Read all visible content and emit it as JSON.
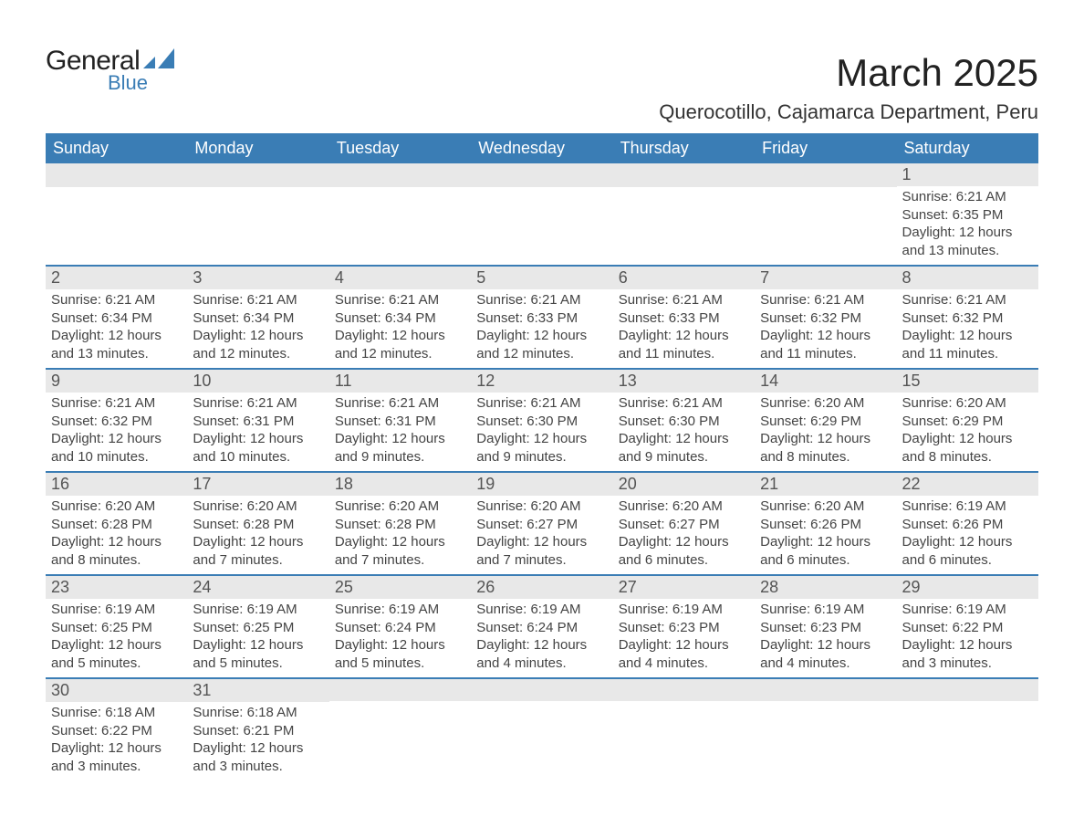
{
  "logo": {
    "general": "General",
    "blue": "Blue",
    "shape_color": "#3a7db5"
  },
  "title": "March 2025",
  "subtitle": "Querocotillo, Cajamarca Department, Peru",
  "colors": {
    "header_bg": "#3a7db5",
    "header_text": "#ffffff",
    "daynum_bg": "#e8e8e8",
    "row_border": "#3a7db5",
    "body_bg": "#ffffff",
    "text": "#444444"
  },
  "weekdays": [
    "Sunday",
    "Monday",
    "Tuesday",
    "Wednesday",
    "Thursday",
    "Friday",
    "Saturday"
  ],
  "weeks": [
    [
      null,
      null,
      null,
      null,
      null,
      null,
      {
        "n": "1",
        "sunrise": "Sunrise: 6:21 AM",
        "sunset": "Sunset: 6:35 PM",
        "daylight1": "Daylight: 12 hours",
        "daylight2": "and 13 minutes."
      }
    ],
    [
      {
        "n": "2",
        "sunrise": "Sunrise: 6:21 AM",
        "sunset": "Sunset: 6:34 PM",
        "daylight1": "Daylight: 12 hours",
        "daylight2": "and 13 minutes."
      },
      {
        "n": "3",
        "sunrise": "Sunrise: 6:21 AM",
        "sunset": "Sunset: 6:34 PM",
        "daylight1": "Daylight: 12 hours",
        "daylight2": "and 12 minutes."
      },
      {
        "n": "4",
        "sunrise": "Sunrise: 6:21 AM",
        "sunset": "Sunset: 6:34 PM",
        "daylight1": "Daylight: 12 hours",
        "daylight2": "and 12 minutes."
      },
      {
        "n": "5",
        "sunrise": "Sunrise: 6:21 AM",
        "sunset": "Sunset: 6:33 PM",
        "daylight1": "Daylight: 12 hours",
        "daylight2": "and 12 minutes."
      },
      {
        "n": "6",
        "sunrise": "Sunrise: 6:21 AM",
        "sunset": "Sunset: 6:33 PM",
        "daylight1": "Daylight: 12 hours",
        "daylight2": "and 11 minutes."
      },
      {
        "n": "7",
        "sunrise": "Sunrise: 6:21 AM",
        "sunset": "Sunset: 6:32 PM",
        "daylight1": "Daylight: 12 hours",
        "daylight2": "and 11 minutes."
      },
      {
        "n": "8",
        "sunrise": "Sunrise: 6:21 AM",
        "sunset": "Sunset: 6:32 PM",
        "daylight1": "Daylight: 12 hours",
        "daylight2": "and 11 minutes."
      }
    ],
    [
      {
        "n": "9",
        "sunrise": "Sunrise: 6:21 AM",
        "sunset": "Sunset: 6:32 PM",
        "daylight1": "Daylight: 12 hours",
        "daylight2": "and 10 minutes."
      },
      {
        "n": "10",
        "sunrise": "Sunrise: 6:21 AM",
        "sunset": "Sunset: 6:31 PM",
        "daylight1": "Daylight: 12 hours",
        "daylight2": "and 10 minutes."
      },
      {
        "n": "11",
        "sunrise": "Sunrise: 6:21 AM",
        "sunset": "Sunset: 6:31 PM",
        "daylight1": "Daylight: 12 hours",
        "daylight2": "and 9 minutes."
      },
      {
        "n": "12",
        "sunrise": "Sunrise: 6:21 AM",
        "sunset": "Sunset: 6:30 PM",
        "daylight1": "Daylight: 12 hours",
        "daylight2": "and 9 minutes."
      },
      {
        "n": "13",
        "sunrise": "Sunrise: 6:21 AM",
        "sunset": "Sunset: 6:30 PM",
        "daylight1": "Daylight: 12 hours",
        "daylight2": "and 9 minutes."
      },
      {
        "n": "14",
        "sunrise": "Sunrise: 6:20 AM",
        "sunset": "Sunset: 6:29 PM",
        "daylight1": "Daylight: 12 hours",
        "daylight2": "and 8 minutes."
      },
      {
        "n": "15",
        "sunrise": "Sunrise: 6:20 AM",
        "sunset": "Sunset: 6:29 PM",
        "daylight1": "Daylight: 12 hours",
        "daylight2": "and 8 minutes."
      }
    ],
    [
      {
        "n": "16",
        "sunrise": "Sunrise: 6:20 AM",
        "sunset": "Sunset: 6:28 PM",
        "daylight1": "Daylight: 12 hours",
        "daylight2": "and 8 minutes."
      },
      {
        "n": "17",
        "sunrise": "Sunrise: 6:20 AM",
        "sunset": "Sunset: 6:28 PM",
        "daylight1": "Daylight: 12 hours",
        "daylight2": "and 7 minutes."
      },
      {
        "n": "18",
        "sunrise": "Sunrise: 6:20 AM",
        "sunset": "Sunset: 6:28 PM",
        "daylight1": "Daylight: 12 hours",
        "daylight2": "and 7 minutes."
      },
      {
        "n": "19",
        "sunrise": "Sunrise: 6:20 AM",
        "sunset": "Sunset: 6:27 PM",
        "daylight1": "Daylight: 12 hours",
        "daylight2": "and 7 minutes."
      },
      {
        "n": "20",
        "sunrise": "Sunrise: 6:20 AM",
        "sunset": "Sunset: 6:27 PM",
        "daylight1": "Daylight: 12 hours",
        "daylight2": "and 6 minutes."
      },
      {
        "n": "21",
        "sunrise": "Sunrise: 6:20 AM",
        "sunset": "Sunset: 6:26 PM",
        "daylight1": "Daylight: 12 hours",
        "daylight2": "and 6 minutes."
      },
      {
        "n": "22",
        "sunrise": "Sunrise: 6:19 AM",
        "sunset": "Sunset: 6:26 PM",
        "daylight1": "Daylight: 12 hours",
        "daylight2": "and 6 minutes."
      }
    ],
    [
      {
        "n": "23",
        "sunrise": "Sunrise: 6:19 AM",
        "sunset": "Sunset: 6:25 PM",
        "daylight1": "Daylight: 12 hours",
        "daylight2": "and 5 minutes."
      },
      {
        "n": "24",
        "sunrise": "Sunrise: 6:19 AM",
        "sunset": "Sunset: 6:25 PM",
        "daylight1": "Daylight: 12 hours",
        "daylight2": "and 5 minutes."
      },
      {
        "n": "25",
        "sunrise": "Sunrise: 6:19 AM",
        "sunset": "Sunset: 6:24 PM",
        "daylight1": "Daylight: 12 hours",
        "daylight2": "and 5 minutes."
      },
      {
        "n": "26",
        "sunrise": "Sunrise: 6:19 AM",
        "sunset": "Sunset: 6:24 PM",
        "daylight1": "Daylight: 12 hours",
        "daylight2": "and 4 minutes."
      },
      {
        "n": "27",
        "sunrise": "Sunrise: 6:19 AM",
        "sunset": "Sunset: 6:23 PM",
        "daylight1": "Daylight: 12 hours",
        "daylight2": "and 4 minutes."
      },
      {
        "n": "28",
        "sunrise": "Sunrise: 6:19 AM",
        "sunset": "Sunset: 6:23 PM",
        "daylight1": "Daylight: 12 hours",
        "daylight2": "and 4 minutes."
      },
      {
        "n": "29",
        "sunrise": "Sunrise: 6:19 AM",
        "sunset": "Sunset: 6:22 PM",
        "daylight1": "Daylight: 12 hours",
        "daylight2": "and 3 minutes."
      }
    ],
    [
      {
        "n": "30",
        "sunrise": "Sunrise: 6:18 AM",
        "sunset": "Sunset: 6:22 PM",
        "daylight1": "Daylight: 12 hours",
        "daylight2": "and 3 minutes."
      },
      {
        "n": "31",
        "sunrise": "Sunrise: 6:18 AM",
        "sunset": "Sunset: 6:21 PM",
        "daylight1": "Daylight: 12 hours",
        "daylight2": "and 3 minutes."
      },
      null,
      null,
      null,
      null,
      null
    ]
  ]
}
